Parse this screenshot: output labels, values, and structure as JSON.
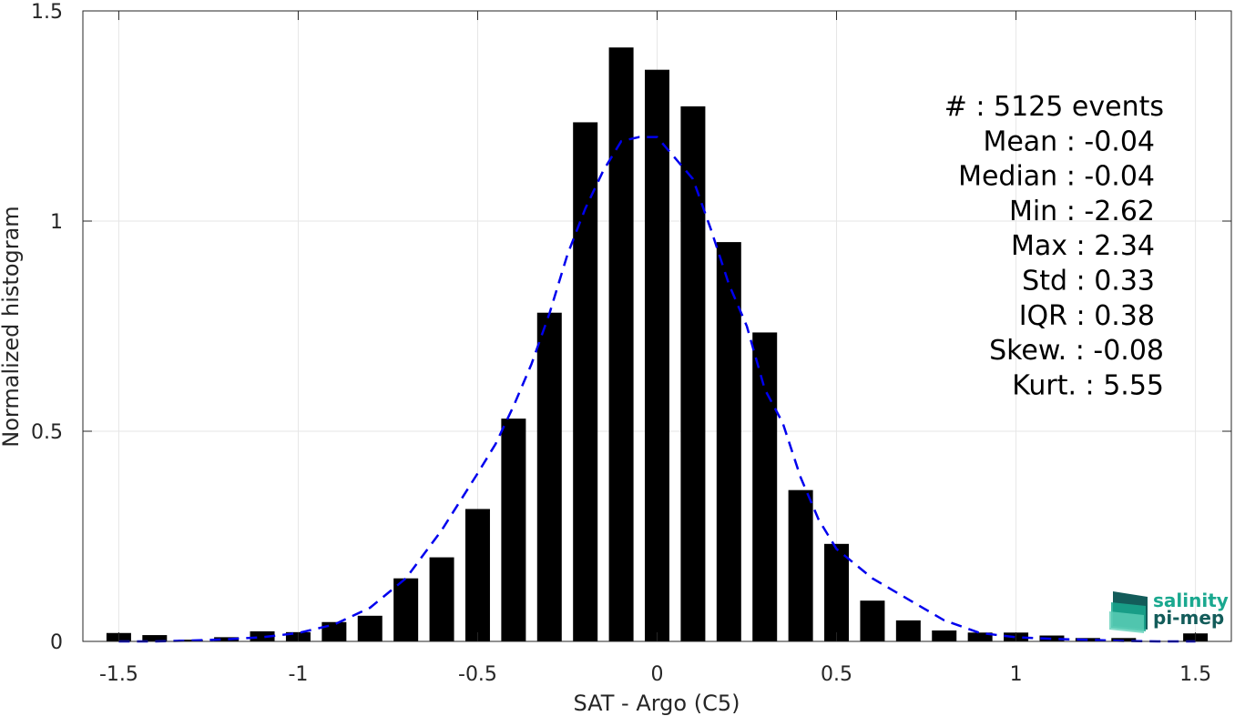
{
  "chart_data": {
    "type": "bar",
    "xlabel": "SAT - Argo (C5)",
    "ylabel": "Normalized histogram",
    "xlim": [
      -1.6,
      1.6
    ],
    "ylim": [
      0,
      1.5
    ],
    "xticks": [
      -1.5,
      -1,
      -0.5,
      0,
      0.5,
      1,
      1.5
    ],
    "xtick_labels": [
      "-1.5",
      "-1",
      "-0.5",
      "0",
      "0.5",
      "1",
      "1.5"
    ],
    "yticks": [
      0,
      0.5,
      1,
      1.5
    ],
    "ytick_labels": [
      "0",
      "0.5",
      "1",
      "1.5"
    ],
    "grid": true,
    "bar_color": "#000000",
    "fit_color": "#0000ee",
    "bars": {
      "x": [
        -1.5,
        -1.4,
        -1.3,
        -1.2,
        -1.1,
        -1.0,
        -0.9,
        -0.8,
        -0.7,
        -0.6,
        -0.5,
        -0.4,
        -0.3,
        -0.2,
        -0.1,
        0.0,
        0.1,
        0.2,
        0.3,
        0.4,
        0.5,
        0.6,
        0.7,
        0.8,
        0.9,
        1.0,
        1.1,
        1.2,
        1.3,
        1.5
      ],
      "values": [
        0.02,
        0.015,
        0.004,
        0.01,
        0.024,
        0.022,
        0.046,
        0.061,
        0.15,
        0.2,
        0.315,
        0.53,
        0.782,
        1.235,
        1.413,
        1.36,
        1.273,
        0.95,
        0.735,
        0.36,
        0.232,
        0.097,
        0.05,
        0.026,
        0.021,
        0.021,
        0.014,
        0.008,
        0.008,
        0.019
      ]
    },
    "gaussian_fit": {
      "style": "dashed",
      "x": [
        -1.5,
        -1.4,
        -1.3,
        -1.2,
        -1.1,
        -1.0,
        -0.9,
        -0.8,
        -0.7,
        -0.6,
        -0.5,
        -0.45,
        -0.4,
        -0.35,
        -0.3,
        -0.25,
        -0.2,
        -0.15,
        -0.1,
        -0.05,
        0.0,
        0.05,
        0.1,
        0.15,
        0.2,
        0.25,
        0.3,
        0.35,
        0.4,
        0.45,
        0.5,
        0.6,
        0.7,
        0.8,
        0.9,
        1.0,
        1.1,
        1.2,
        1.3,
        1.4,
        1.5
      ],
      "y": [
        0.0,
        0.0,
        0.002,
        0.005,
        0.01,
        0.02,
        0.04,
        0.08,
        0.15,
        0.265,
        0.4,
        0.47,
        0.56,
        0.66,
        0.78,
        0.92,
        1.03,
        1.12,
        1.19,
        1.2,
        1.2,
        1.15,
        1.1,
        0.98,
        0.85,
        0.75,
        0.6,
        0.52,
        0.39,
        0.29,
        0.22,
        0.15,
        0.1,
        0.05,
        0.02,
        0.01,
        0.006,
        0.004,
        0.001,
        0.0,
        0.0
      ]
    },
    "annotations": [
      "#  : 5125 events",
      "Mean : -0.04",
      "Median : -0.04",
      "Min : -2.62",
      "Max : 2.34",
      "Std : 0.33",
      "IQR : 0.38",
      "Skew. : -0.08",
      "Kurt. : 5.55"
    ]
  },
  "logo": {
    "line1": "salinity",
    "line2": "pi-mep",
    "color": "#1aa88f",
    "dark_color": "#135c5a"
  }
}
